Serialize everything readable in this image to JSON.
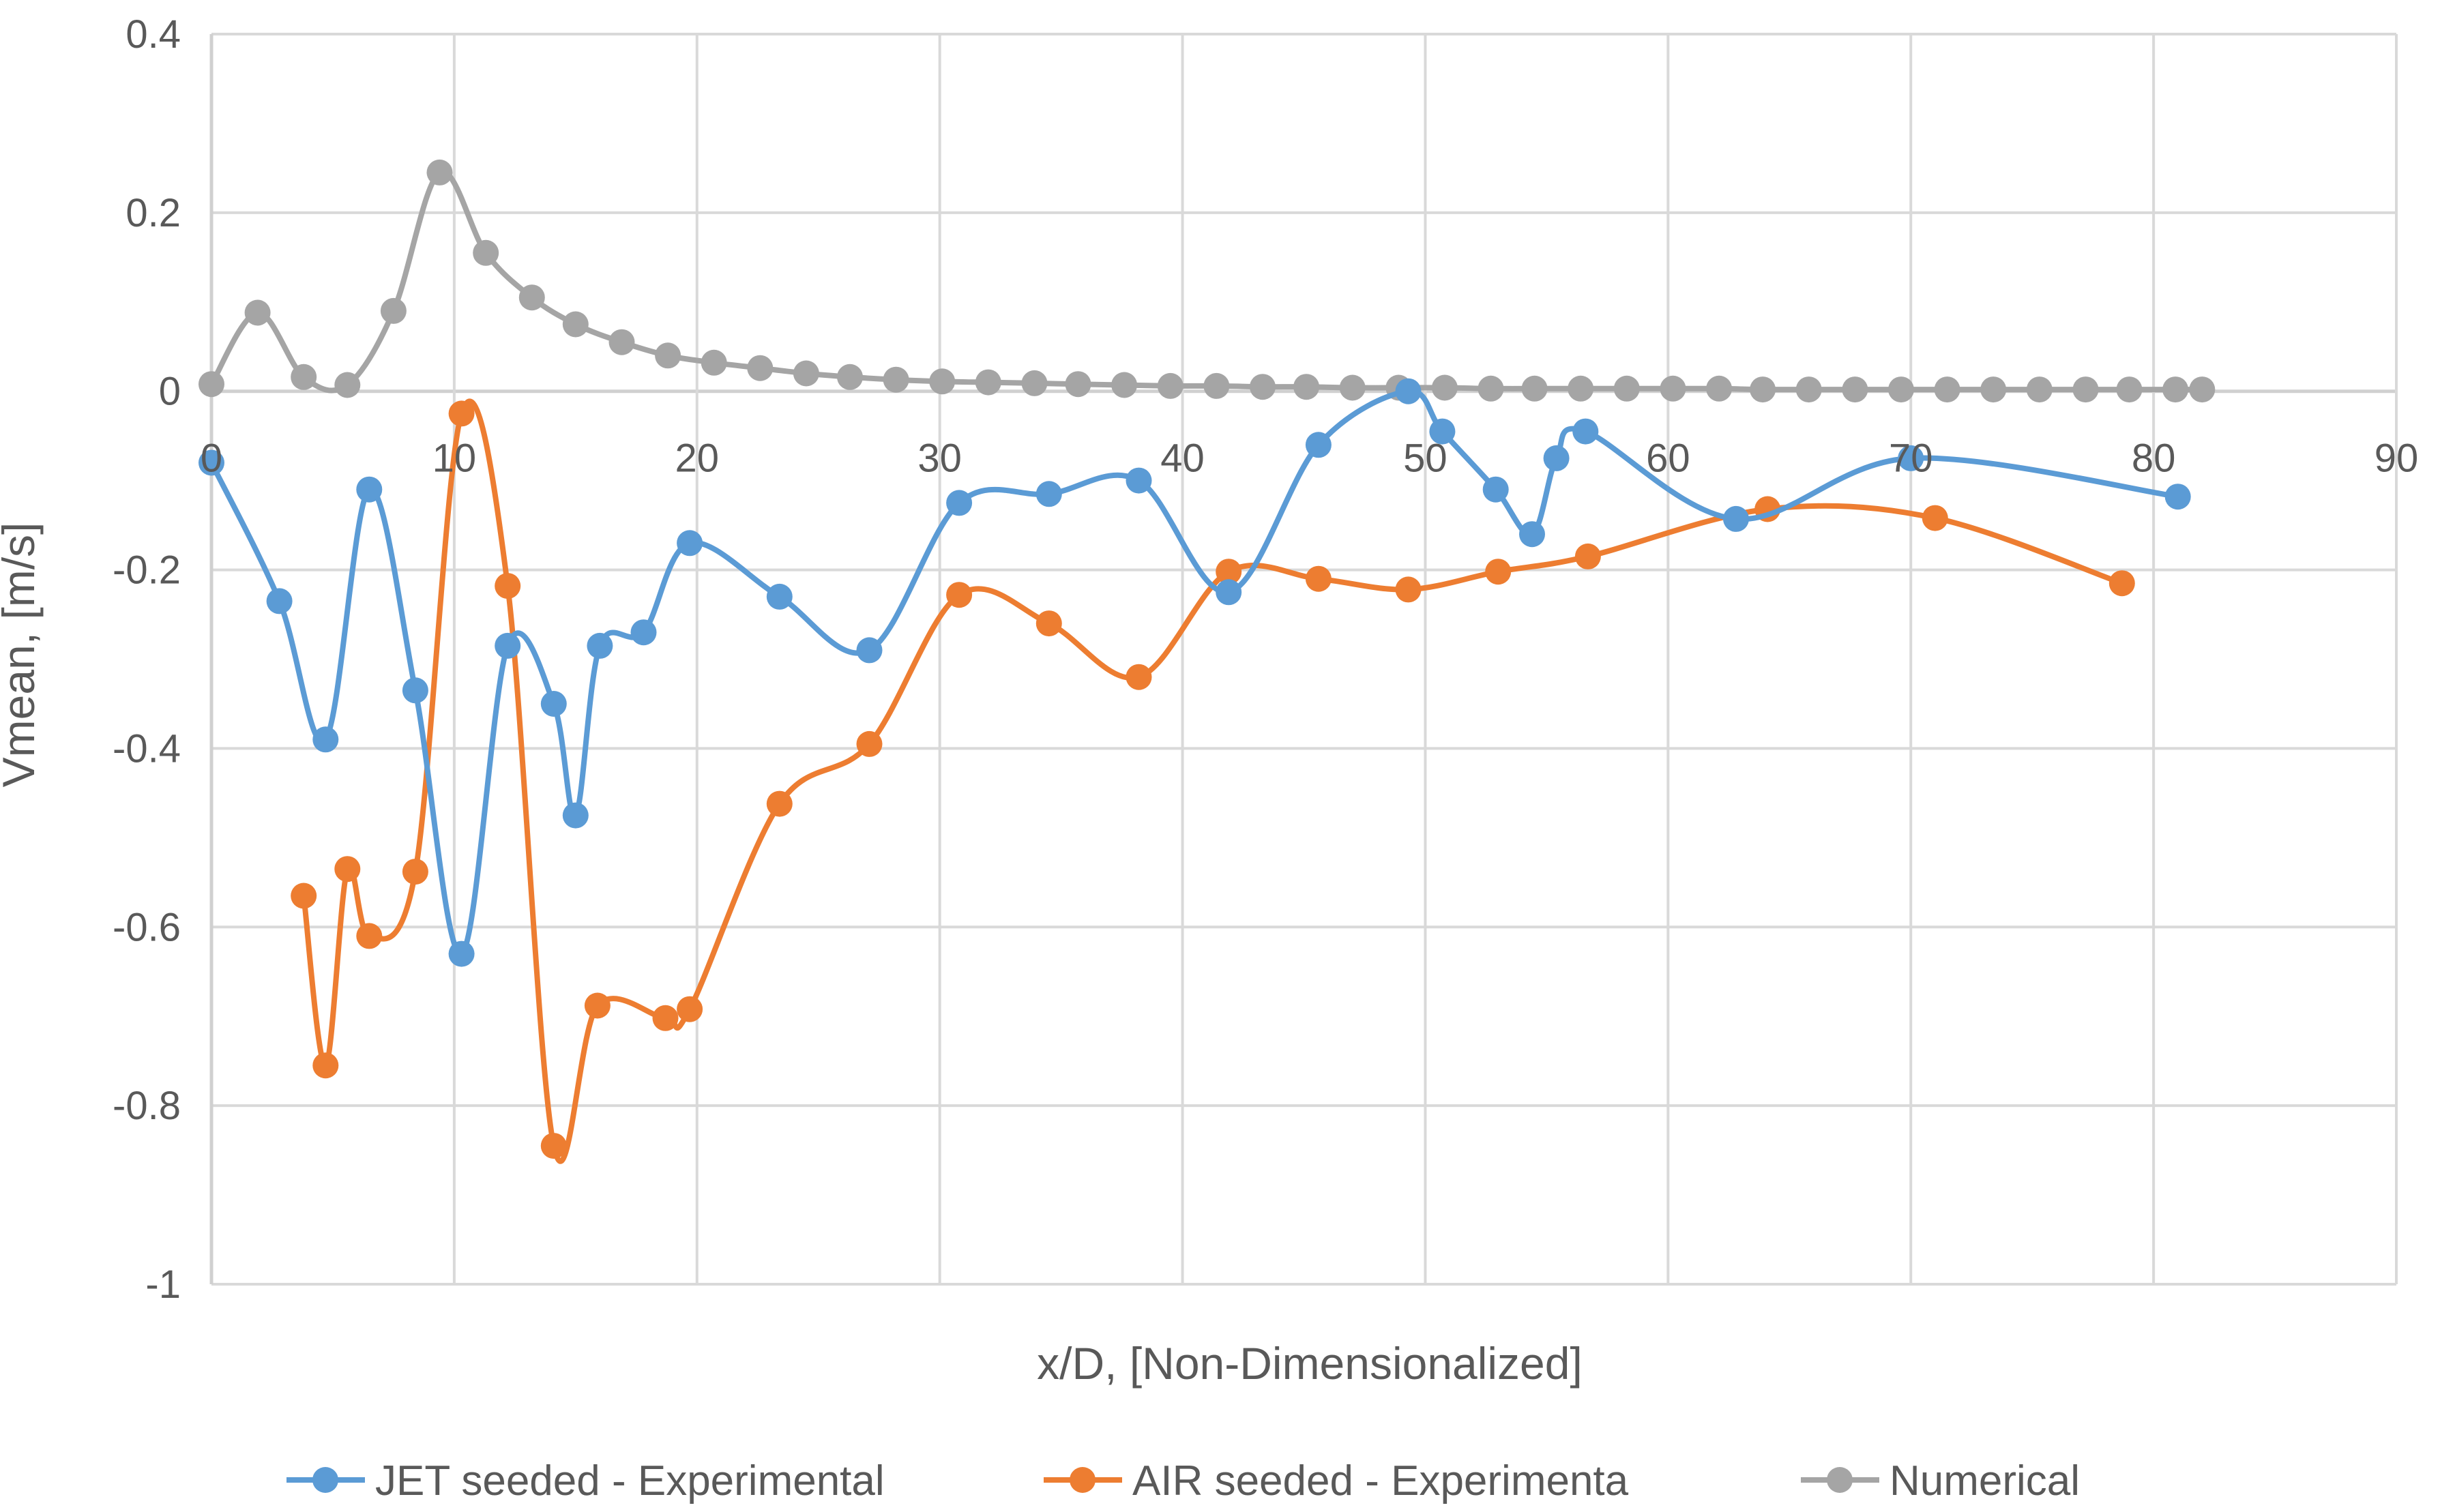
{
  "chart_data": {
    "type": "scatter",
    "title": "",
    "xlabel": "x/D, [Non-Dimensionalized]",
    "ylabel": "Vmean, [m/s]",
    "xlim": [
      0,
      90
    ],
    "ylim": [
      -1,
      0.4
    ],
    "x_ticks": [
      0,
      10,
      20,
      30,
      40,
      50,
      60,
      70,
      80,
      90
    ],
    "y_ticks": [
      0.4,
      0.2,
      0,
      -0.2,
      -0.4,
      -0.6,
      -0.8,
      -1
    ],
    "grid": true,
    "smoothed_lines": true,
    "legend_position": "bottom",
    "series": [
      {
        "name": "JET seeded - Experimental",
        "color": "#5b9bd5",
        "x": [
          0,
          2.8,
          4.7,
          6.5,
          8.4,
          10.3,
          12.2,
          14.1,
          15.0,
          16.0,
          17.8,
          19.7,
          23.4,
          27.1,
          30.8,
          34.5,
          38.2,
          41.9,
          45.6,
          49.3,
          50.7,
          52.9,
          54.4,
          55.4,
          56.6,
          62.8,
          70.0,
          81.0
        ],
        "y": [
          -0.08,
          -0.235,
          -0.39,
          -0.11,
          -0.335,
          -0.63,
          -0.285,
          -0.35,
          -0.475,
          -0.285,
          -0.27,
          -0.17,
          -0.23,
          -0.29,
          -0.125,
          -0.115,
          -0.1,
          -0.225,
          -0.06,
          0.0,
          -0.045,
          -0.11,
          -0.16,
          -0.075,
          -0.045,
          -0.143,
          -0.075,
          -0.118
        ]
      },
      {
        "name": "AIR seeded - Experimenta",
        "color": "#ed7d31",
        "x": [
          3.8,
          4.7,
          5.6,
          6.5,
          8.4,
          10.3,
          12.2,
          14.1,
          15.9,
          18.7,
          19.7,
          23.4,
          27.1,
          30.8,
          34.5,
          38.2,
          41.9,
          45.6,
          49.3,
          53.0,
          56.7,
          64.1,
          71.0,
          78.7
        ],
        "y": [
          -0.565,
          -0.755,
          -0.535,
          -0.61,
          -0.538,
          -0.025,
          -0.218,
          -0.845,
          -0.688,
          -0.702,
          -0.692,
          -0.462,
          -0.395,
          -0.228,
          -0.26,
          -0.32,
          -0.202,
          -0.21,
          -0.222,
          -0.202,
          -0.185,
          -0.132,
          -0.142,
          -0.215
        ]
      },
      {
        "name": "Numerical",
        "color": "#a5a5a5",
        "x": [
          0,
          1.9,
          3.8,
          5.6,
          7.5,
          9.4,
          11.3,
          13.2,
          15.0,
          16.9,
          18.8,
          20.7,
          22.6,
          24.5,
          26.3,
          28.2,
          30.1,
          32.0,
          33.9,
          35.7,
          37.6,
          39.5,
          41.4,
          43.3,
          45.1,
          47.0,
          48.9,
          50.8,
          52.7,
          54.5,
          56.4,
          58.3,
          60.2,
          62.1,
          63.9,
          65.8,
          67.7,
          69.6,
          71.5,
          73.4,
          75.3,
          77.2,
          79.0,
          80.9,
          82.0
        ],
        "y": [
          0.008,
          0.088,
          0.016,
          0.007,
          0.09,
          0.245,
          0.155,
          0.105,
          0.075,
          0.055,
          0.04,
          0.032,
          0.026,
          0.02,
          0.016,
          0.013,
          0.011,
          0.01,
          0.009,
          0.008,
          0.007,
          0.006,
          0.006,
          0.005,
          0.005,
          0.004,
          0.004,
          0.004,
          0.003,
          0.003,
          0.003,
          0.003,
          0.003,
          0.003,
          0.002,
          0.002,
          0.002,
          0.002,
          0.002,
          0.002,
          0.002,
          0.002,
          0.002,
          0.002,
          0.002
        ]
      }
    ]
  }
}
